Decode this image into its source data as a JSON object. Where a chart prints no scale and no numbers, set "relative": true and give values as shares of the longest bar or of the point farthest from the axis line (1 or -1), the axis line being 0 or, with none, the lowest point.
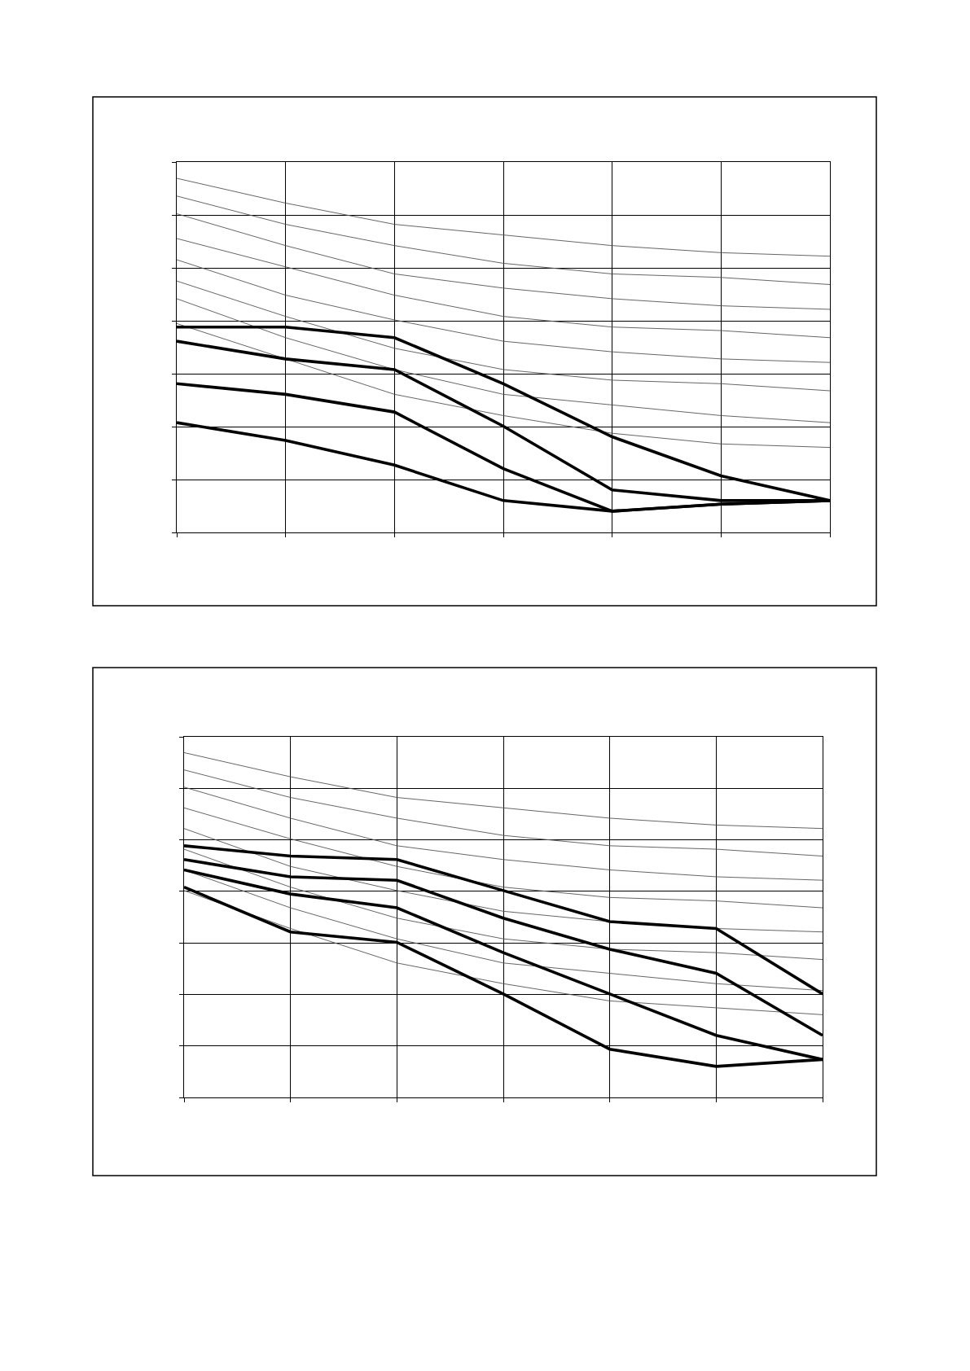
{
  "chart_data": [
    {
      "type": "line",
      "relative": true,
      "grid": true,
      "marker": "none",
      "line_style": "solid",
      "categories": [
        null,
        null,
        null,
        null,
        null,
        null,
        null
      ],
      "series": [
        {
          "color": "#555555",
          "values": [
            1.0,
            0.93,
            0.87,
            0.84,
            0.81,
            0.79,
            0.78
          ]
        },
        {
          "color": "#555555",
          "values": [
            0.95,
            0.87,
            0.81,
            0.76,
            0.73,
            0.72,
            0.7
          ]
        },
        {
          "color": "#555555",
          "values": [
            0.9,
            0.81,
            0.73,
            0.69,
            0.66,
            0.64,
            0.63
          ]
        },
        {
          "color": "#555555",
          "values": [
            0.83,
            0.75,
            0.67,
            0.61,
            0.58,
            0.57,
            0.55
          ]
        },
        {
          "color": "#555555",
          "values": [
            0.77,
            0.67,
            0.6,
            0.54,
            0.51,
            0.49,
            0.48
          ]
        },
        {
          "color": "#555555",
          "values": [
            0.71,
            0.61,
            0.52,
            0.46,
            0.43,
            0.42,
            0.4
          ]
        },
        {
          "color": "#555555",
          "values": [
            0.66,
            0.55,
            0.46,
            0.39,
            0.36,
            0.33,
            0.31
          ]
        },
        {
          "color": "#555555",
          "values": [
            0.59,
            0.49,
            0.39,
            0.33,
            0.28,
            0.25,
            0.24
          ]
        },
        {
          "color": "#000000",
          "values": [
            0.58,
            0.58,
            0.55,
            0.42,
            0.27,
            0.16,
            0.09
          ]
        },
        {
          "color": "#000000",
          "values": [
            0.54,
            0.49,
            0.46,
            0.3,
            0.12,
            0.09,
            0.09
          ]
        },
        {
          "color": "#000000",
          "values": [
            0.42,
            0.39,
            0.34,
            0.18,
            0.06,
            0.08,
            0.09
          ]
        },
        {
          "color": "#000000",
          "values": [
            0.31,
            0.26,
            0.19,
            0.09,
            0.06,
            0.08,
            0.09
          ]
        }
      ]
    },
    {
      "type": "line",
      "relative": true,
      "grid": true,
      "marker": "none",
      "line_style": "solid",
      "categories": [
        null,
        null,
        null,
        null,
        null,
        null,
        null
      ],
      "series": [
        {
          "color": "#555555",
          "values": [
            1.0,
            0.93,
            0.87,
            0.84,
            0.81,
            0.79,
            0.78
          ]
        },
        {
          "color": "#555555",
          "values": [
            0.95,
            0.87,
            0.81,
            0.76,
            0.73,
            0.72,
            0.7
          ]
        },
        {
          "color": "#555555",
          "values": [
            0.9,
            0.81,
            0.73,
            0.69,
            0.66,
            0.64,
            0.63
          ]
        },
        {
          "color": "#555555",
          "values": [
            0.84,
            0.75,
            0.67,
            0.61,
            0.58,
            0.57,
            0.55
          ]
        },
        {
          "color": "#555555",
          "values": [
            0.78,
            0.67,
            0.6,
            0.54,
            0.51,
            0.49,
            0.48
          ]
        },
        {
          "color": "#555555",
          "values": [
            0.72,
            0.61,
            0.52,
            0.46,
            0.43,
            0.42,
            0.4
          ]
        },
        {
          "color": "#555555",
          "values": [
            0.66,
            0.55,
            0.46,
            0.39,
            0.36,
            0.33,
            0.31
          ]
        },
        {
          "color": "#555555",
          "values": [
            0.6,
            0.49,
            0.39,
            0.33,
            0.28,
            0.26,
            0.24
          ]
        },
        {
          "color": "#000000",
          "values": [
            0.73,
            0.7,
            0.69,
            0.6,
            0.51,
            0.49,
            0.3
          ]
        },
        {
          "color": "#000000",
          "values": [
            0.69,
            0.64,
            0.63,
            0.52,
            0.43,
            0.36,
            0.18
          ]
        },
        {
          "color": "#000000",
          "values": [
            0.66,
            0.59,
            0.55,
            0.42,
            0.3,
            0.18,
            0.11
          ]
        },
        {
          "color": "#000000",
          "values": [
            0.61,
            0.48,
            0.45,
            0.3,
            0.14,
            0.09,
            0.11
          ]
        }
      ]
    }
  ]
}
